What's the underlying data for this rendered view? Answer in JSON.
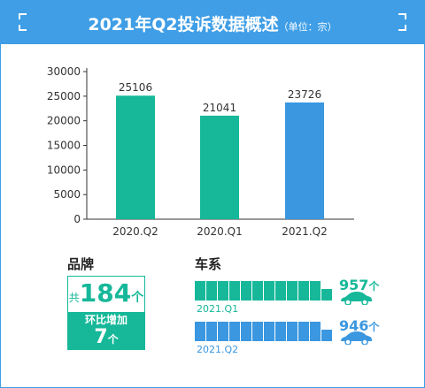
{
  "header": {
    "title": "2021年Q2投诉数据概述",
    "unit": "（单位：宗）"
  },
  "colors": {
    "header_bg": "#3f9ee6",
    "green": "#16b899",
    "blue": "#3a97e0"
  },
  "chart_data": {
    "type": "bar",
    "categories": [
      "2020.Q2",
      "2020.Q1",
      "2021.Q2"
    ],
    "values": [
      25106,
      21041,
      23726
    ],
    "bar_colors": [
      "#16b899",
      "#16b899",
      "#3a97e0"
    ],
    "ylim": [
      0,
      30000
    ],
    "yticks": [
      0,
      5000,
      10000,
      15000,
      20000,
      25000,
      30000
    ],
    "data_labels": [
      "25106",
      "21041",
      "23726"
    ],
    "grid": false
  },
  "brand": {
    "title": "品牌",
    "prefix": "共",
    "count": "184",
    "count_unit": "个",
    "change_label": "环比增加",
    "change": "7",
    "change_unit": "个"
  },
  "series_section": {
    "title": "车系",
    "rows": [
      {
        "period": "2021.Q1",
        "count": "957",
        "unit": "个",
        "color": "#16b899",
        "icon": "car-icon"
      },
      {
        "period": "2021.Q2",
        "count": "946",
        "unit": "个",
        "color": "#3a97e0",
        "icon": "car-icon"
      }
    ]
  }
}
